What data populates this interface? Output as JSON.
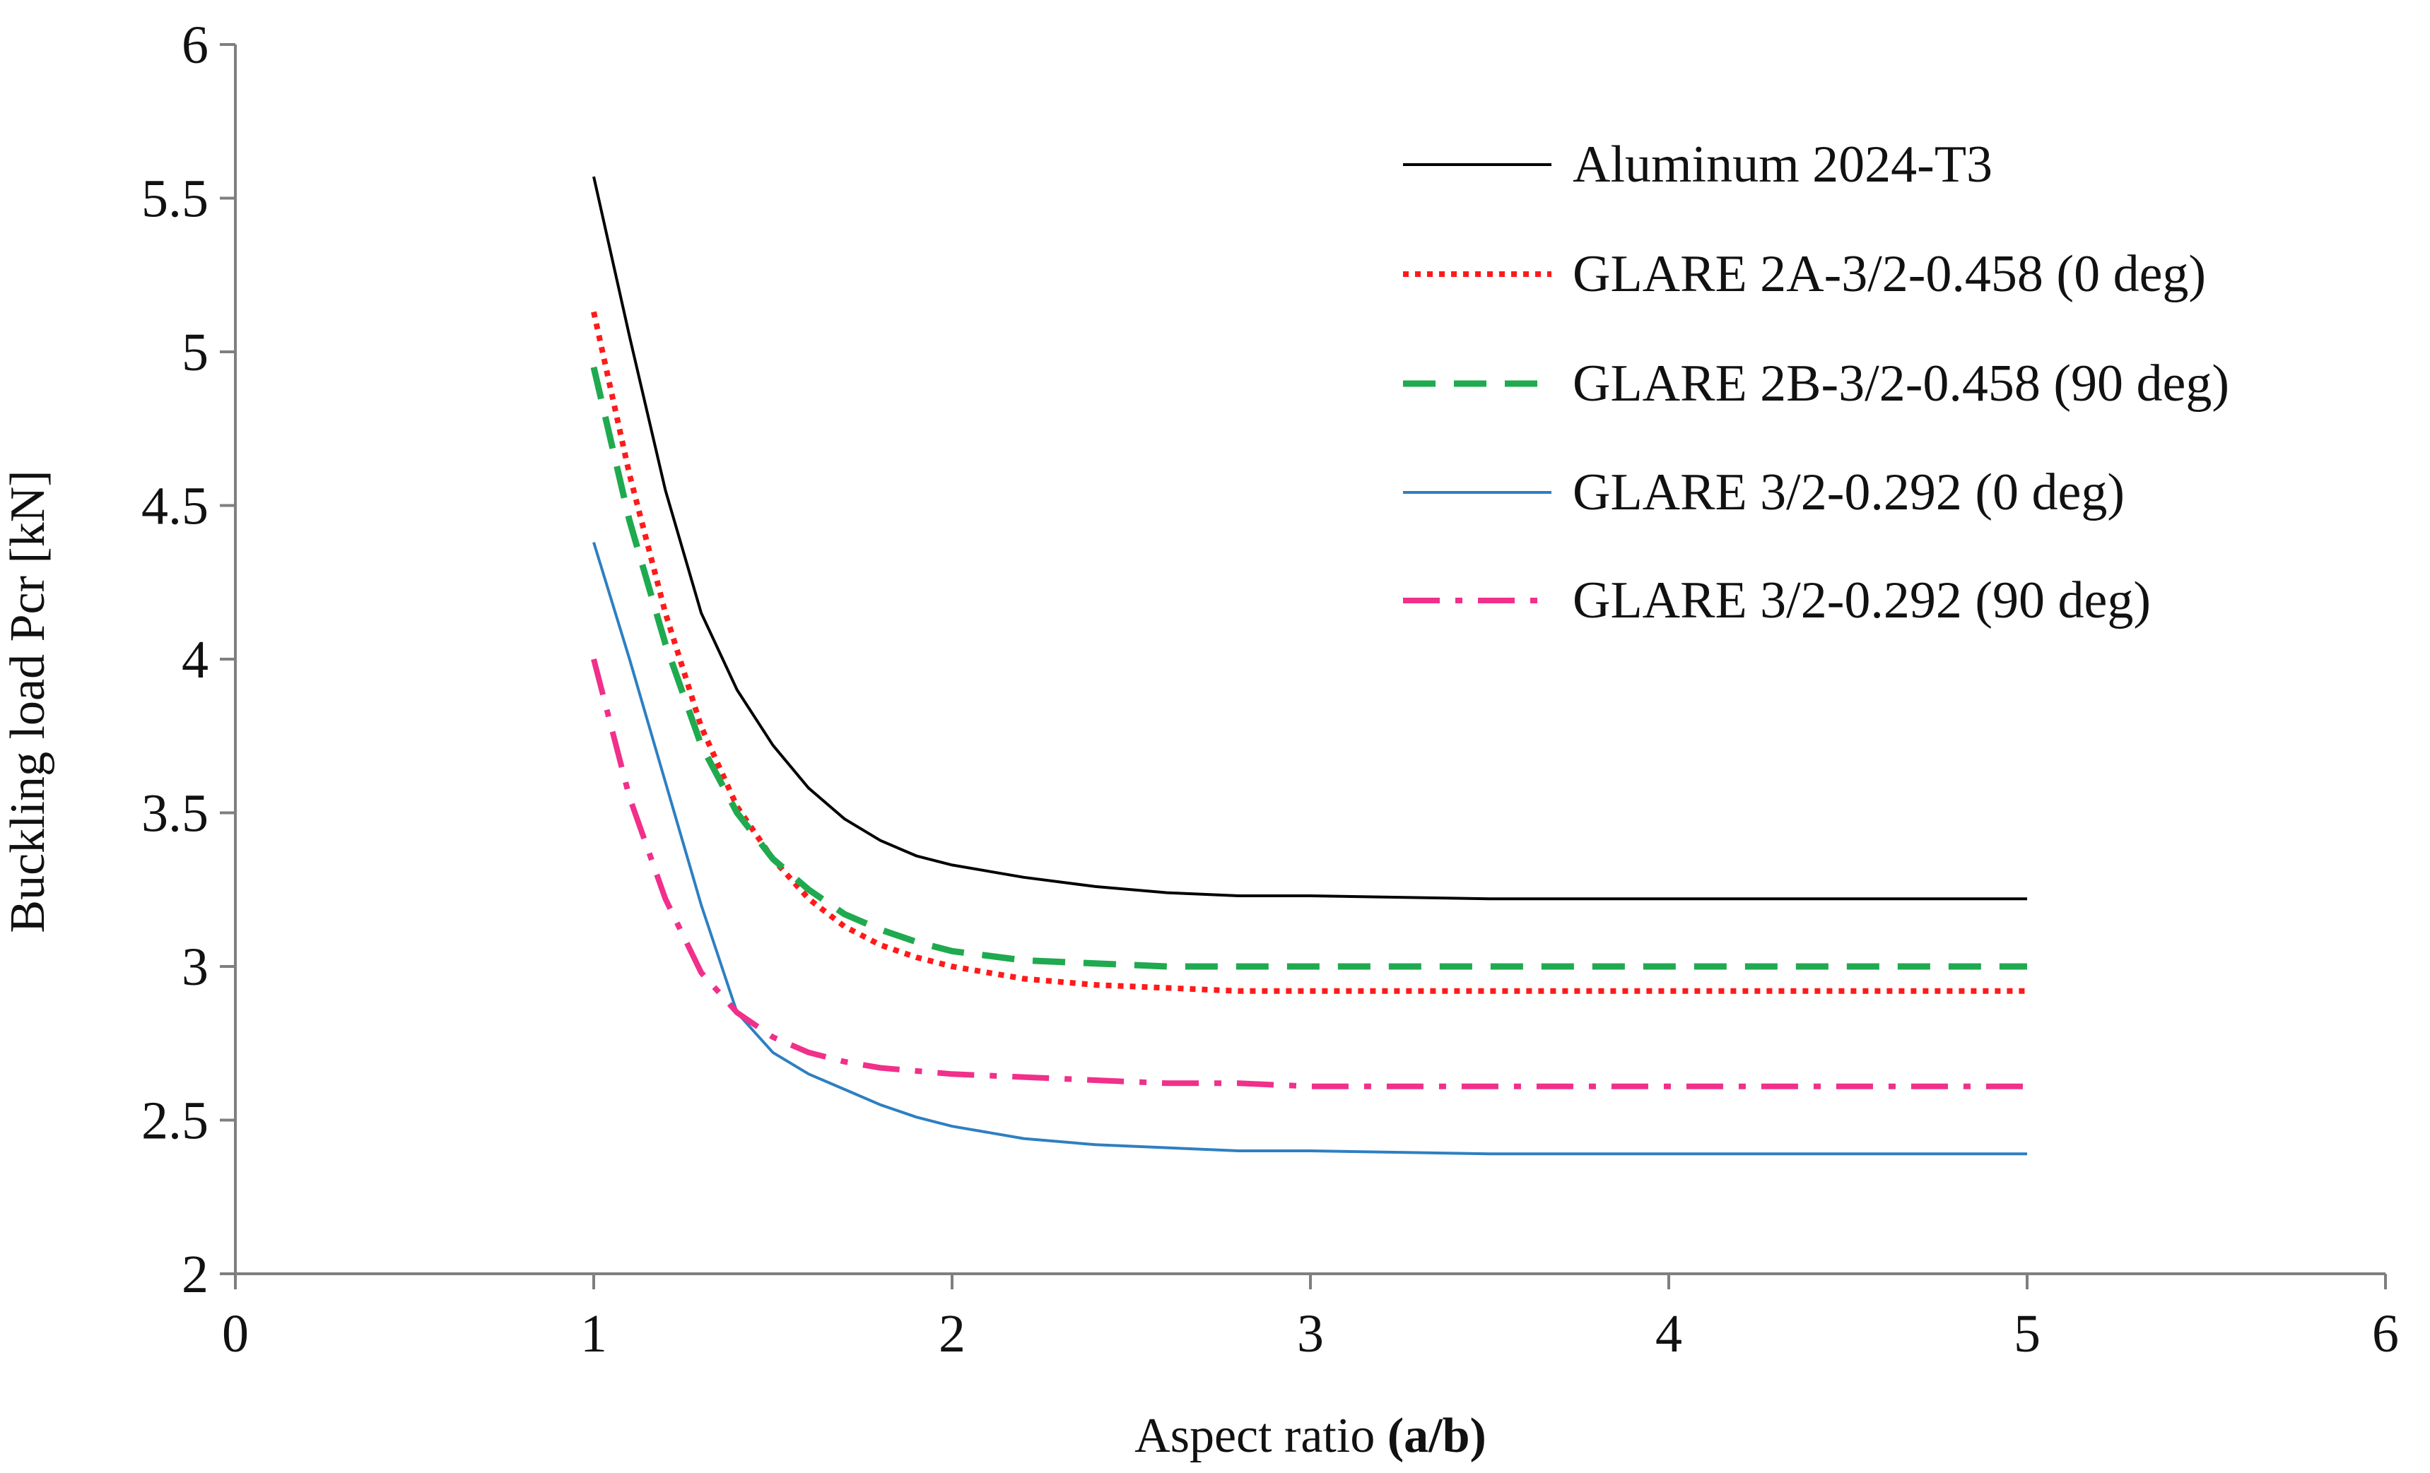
{
  "chart_data": {
    "type": "line",
    "title": "",
    "xlabel_prefix": "Aspect ratio ",
    "xlabel_bold": "(a/b)",
    "ylabel": "Buckling load Pcr [kN]",
    "xlim": [
      0,
      6
    ],
    "ylim": [
      2,
      6
    ],
    "xticks": [
      "0",
      "1",
      "2",
      "3",
      "4",
      "5",
      "6"
    ],
    "yticks": [
      "2",
      "2.5",
      "3",
      "3.5",
      "4",
      "4.5",
      "5",
      "5.5",
      "6"
    ],
    "grid": false,
    "legend_position": "top-right",
    "x": [
      1.0,
      1.1,
      1.2,
      1.3,
      1.4,
      1.5,
      1.6,
      1.7,
      1.8,
      1.9,
      2.0,
      2.2,
      2.4,
      2.6,
      2.8,
      3.0,
      3.5,
      4.0,
      4.5,
      5.0
    ],
    "series": [
      {
        "name": "Aluminum 2024-T3",
        "color": "#000000",
        "style": "solid",
        "values": [
          5.57,
          5.05,
          4.55,
          4.15,
          3.9,
          3.72,
          3.58,
          3.48,
          3.41,
          3.36,
          3.33,
          3.29,
          3.26,
          3.24,
          3.23,
          3.23,
          3.22,
          3.22,
          3.22,
          3.22
        ]
      },
      {
        "name": "GLARE 2A-3/2-0.458 (0 deg)",
        "color": "#ff1a1a",
        "style": "dotted",
        "values": [
          5.13,
          4.6,
          4.15,
          3.78,
          3.52,
          3.35,
          3.22,
          3.13,
          3.07,
          3.03,
          3.0,
          2.96,
          2.94,
          2.93,
          2.92,
          2.92,
          2.92,
          2.92,
          2.92,
          2.92
        ]
      },
      {
        "name": "GLARE 2B-3/2-0.458 (90 deg)",
        "color": "#1faa4f",
        "style": "dashed",
        "values": [
          4.95,
          4.45,
          4.05,
          3.72,
          3.5,
          3.35,
          3.25,
          3.17,
          3.12,
          3.08,
          3.05,
          3.02,
          3.01,
          3.0,
          3.0,
          3.0,
          3.0,
          3.0,
          3.0,
          3.0
        ]
      },
      {
        "name": "GLARE 3/2-0.292 (0 deg)",
        "color": "#2e7fc2",
        "style": "solid",
        "values": [
          4.38,
          4.0,
          3.6,
          3.2,
          2.85,
          2.72,
          2.65,
          2.6,
          2.55,
          2.51,
          2.48,
          2.44,
          2.42,
          2.41,
          2.4,
          2.4,
          2.39,
          2.39,
          2.39,
          2.39
        ]
      },
      {
        "name": "GLARE 3/2-0.292 (90 deg)",
        "color": "#f0308a",
        "style": "dashdot",
        "values": [
          4.0,
          3.55,
          3.22,
          2.98,
          2.85,
          2.77,
          2.72,
          2.69,
          2.67,
          2.66,
          2.65,
          2.64,
          2.63,
          2.62,
          2.62,
          2.61,
          2.61,
          2.61,
          2.61,
          2.61
        ]
      }
    ]
  }
}
